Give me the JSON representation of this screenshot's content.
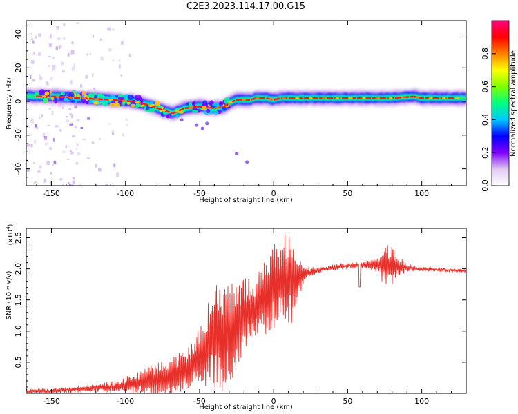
{
  "title": "C2E3.2023.114.17.00.G15",
  "chart_data": [
    {
      "type": "heatmap",
      "title": "C2E3.2023.114.17.00.G15",
      "xlabel": "Height of straight line (km)",
      "ylabel": "Frequency (Hz)",
      "xlim": [
        -167,
        130
      ],
      "ylim": [
        -50,
        48
      ],
      "xticks": [
        -150,
        -100,
        -50,
        0,
        50,
        100
      ],
      "yticks": [
        -40,
        -20,
        0,
        20,
        40
      ],
      "colorbar": {
        "label": "Normalized spectral amplitude",
        "range": [
          0.0,
          1.0
        ],
        "ticks": [
          0.0,
          0.2,
          0.4,
          0.6,
          0.8
        ],
        "colormap": [
          "#ffffff",
          "#e0c8f0",
          "#8000ff",
          "#0000ff",
          "#00c8ff",
          "#00ff80",
          "#80ff00",
          "#ffff00",
          "#ff8000",
          "#ff0000",
          "#ff0080"
        ]
      },
      "ridge": {
        "x": [
          -167,
          -150,
          -130,
          -110,
          -95,
          -85,
          -75,
          -68,
          -60,
          -50,
          -40,
          -33,
          -30,
          -25,
          -20,
          -15,
          -12,
          -5,
          0,
          5,
          10,
          20,
          40,
          60,
          80,
          95,
          100,
          115,
          130
        ],
        "y": [
          3,
          3,
          2,
          1,
          0,
          -2,
          -5,
          -7,
          -4,
          -3,
          -4,
          -3,
          -1,
          1,
          1,
          1,
          2,
          2,
          1,
          2,
          2,
          2,
          2,
          2,
          2,
          3,
          2,
          2,
          2
        ]
      }
    },
    {
      "type": "line",
      "xlabel": "Height of straight line (km)",
      "ylabel": "SNR (10 * v/v)",
      "yscale_note": "(x10",
      "yscale_exp": "4",
      "yscale_close": ")",
      "xlim": [
        -167,
        130
      ],
      "ylim": [
        0.0,
        2.65
      ],
      "xticks": [
        -150,
        -100,
        -50,
        0,
        50,
        100
      ],
      "yticks": [
        0.5,
        1.0,
        1.5,
        2.0,
        2.5
      ],
      "color": "#e8302a",
      "envelope": {
        "x": [
          -167,
          -150,
          -130,
          -110,
          -100,
          -90,
          -80,
          -70,
          -60,
          -55,
          -50,
          -45,
          -40,
          -35,
          -30,
          -25,
          -20,
          -15,
          -10,
          -5,
          0,
          5,
          10,
          15,
          20,
          25,
          30,
          40,
          50,
          60,
          70,
          75,
          80,
          85,
          90,
          95,
          100,
          110,
          120,
          130
        ],
        "y": [
          0.03,
          0.04,
          0.07,
          0.1,
          0.13,
          0.18,
          0.22,
          0.28,
          0.35,
          0.45,
          0.6,
          0.75,
          0.9,
          0.9,
          0.95,
          1.1,
          1.25,
          1.3,
          1.4,
          1.55,
          1.7,
          1.8,
          1.85,
          1.85,
          1.9,
          1.95,
          1.98,
          2.02,
          2.05,
          2.06,
          2.07,
          2.07,
          2.05,
          2.03,
          2.02,
          2.0,
          2.0,
          1.99,
          1.98,
          1.96
        ]
      },
      "amplitude": {
        "x": [
          -167,
          -120,
          -110,
          -100,
          -90,
          -80,
          -70,
          -60,
          -55,
          -50,
          -45,
          -40,
          -35,
          -30,
          -25,
          -20,
          -15,
          -10,
          -5,
          0,
          5,
          10,
          15,
          20,
          25,
          30,
          40,
          50,
          60,
          70,
          75,
          80,
          85,
          90,
          100,
          130
        ],
        "y": [
          0.03,
          0.05,
          0.08,
          0.12,
          0.2,
          0.25,
          0.3,
          0.35,
          0.35,
          0.5,
          0.7,
          0.85,
          0.9,
          0.8,
          0.7,
          0.6,
          0.55,
          0.55,
          0.6,
          0.7,
          0.6,
          0.9,
          0.5,
          0.15,
          0.06,
          0.04,
          0.04,
          0.04,
          0.05,
          0.1,
          0.35,
          0.3,
          0.15,
          0.06,
          0.03,
          0.02
        ]
      }
    }
  ]
}
